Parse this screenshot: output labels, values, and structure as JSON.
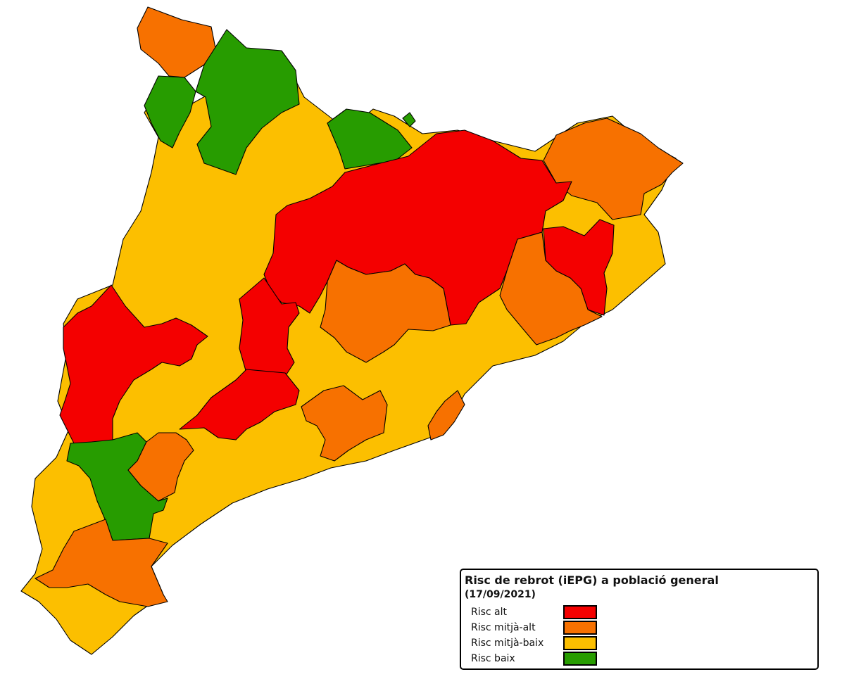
{
  "legend": {
    "title": "Risc de rebrot (iEPG) a població general",
    "date": "(17/09/2021)",
    "items": [
      {
        "label": "Risc alt",
        "color": "#f40000"
      },
      {
        "label": "Risc mitjà-alt",
        "color": "#f77100"
      },
      {
        "label": "Risc mitjà-baix",
        "color": "#fcbf00"
      },
      {
        "label": "Risc baix",
        "color": "#279c00"
      }
    ]
  },
  "colors": {
    "high": "#f40000",
    "mid_high": "#f77100",
    "mid_low": "#fcbf00",
    "low": "#279c00"
  }
}
